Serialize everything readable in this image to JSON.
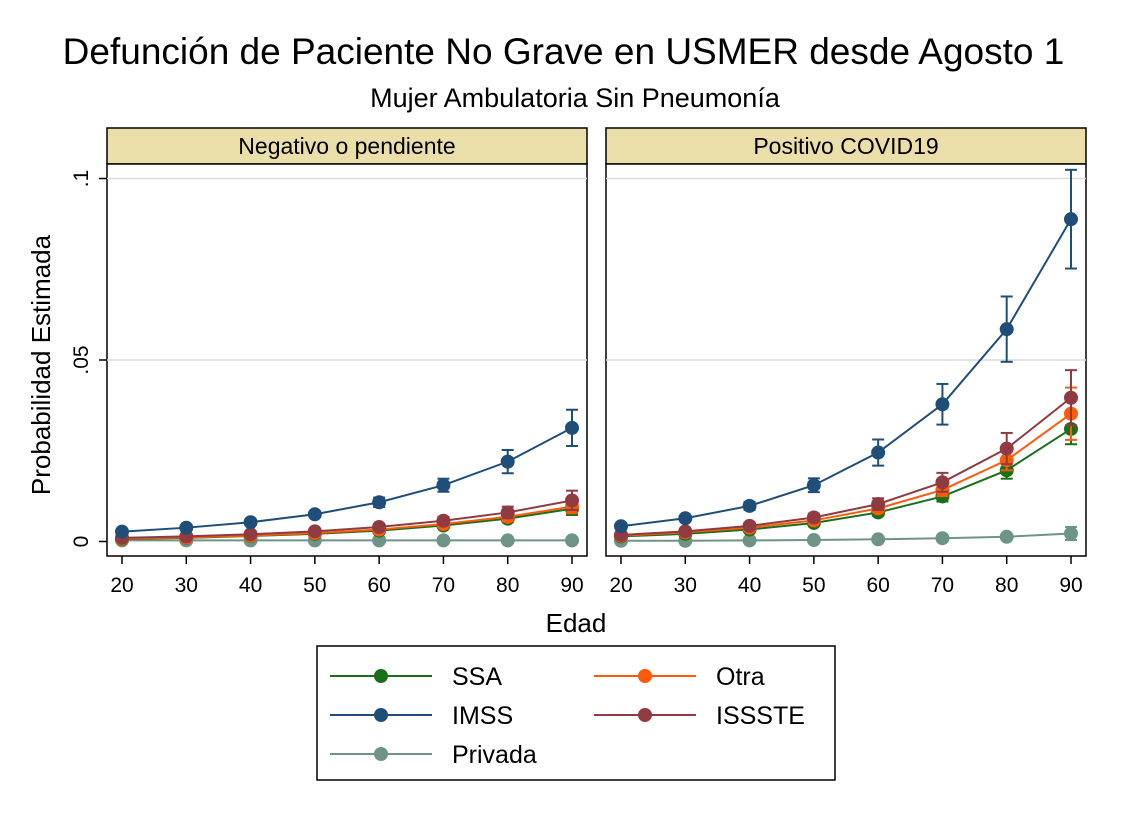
{
  "title": "Defunción de Paciente No Grave en USMER desde Agosto 1",
  "subtitle": "Mujer Ambulatoria Sin Pneumonía",
  "chart_data": {
    "type": "line",
    "xlabel": "Edad",
    "ylabel": "Probabilidad Estimada",
    "x": [
      20,
      30,
      40,
      50,
      60,
      70,
      80,
      90
    ],
    "x_ticks": [
      "20",
      "30",
      "40",
      "50",
      "60",
      "70",
      "80",
      "90"
    ],
    "ylim": [
      -0.004,
      0.104
    ],
    "y_ticks": [
      {
        "value": 0,
        "label": "0"
      },
      {
        "value": 0.05,
        "label": ".05"
      },
      {
        "value": 0.1,
        "label": ".1"
      }
    ],
    "grid": true,
    "legend_position": "bottom",
    "series_styles": [
      {
        "name": "SSA",
        "color": "#1a6f1a"
      },
      {
        "name": "IMSS",
        "color": "#1f4e79"
      },
      {
        "name": "Privada",
        "color": "#6e9488"
      },
      {
        "name": "Otra",
        "color": "#ff5a0a"
      },
      {
        "name": "ISSSTE",
        "color": "#903a42"
      }
    ],
    "panels": [
      {
        "title": "Negativo o pendiente",
        "series": [
          {
            "name": "Privada",
            "values": [
              0.0003,
              0.0003,
              0.0003,
              0.0003,
              0.0003,
              0.0003,
              0.0003,
              0.0003
            ],
            "lower": [
              0.0003,
              0.0003,
              0.0003,
              0.0003,
              0.0003,
              0.0003,
              0.0003,
              0.0003
            ],
            "upper": [
              0.0003,
              0.0003,
              0.0003,
              0.0003,
              0.0003,
              0.0003,
              0.0003,
              0.0003
            ]
          },
          {
            "name": "SSA",
            "values": [
              0.0007,
              0.001,
              0.0015,
              0.0021,
              0.003,
              0.0044,
              0.0063,
              0.009
            ],
            "lower": [
              0.0005,
              0.0008,
              0.0012,
              0.0018,
              0.0025,
              0.0037,
              0.0053,
              0.0073
            ],
            "upper": [
              0.0009,
              0.0012,
              0.0018,
              0.0024,
              0.0035,
              0.0051,
              0.0073,
              0.0107
            ]
          },
          {
            "name": "Otra",
            "values": [
              0.0008,
              0.0011,
              0.0016,
              0.0023,
              0.0033,
              0.0048,
              0.0068,
              0.0096
            ],
            "lower": [
              0.0006,
              0.0009,
              0.0013,
              0.0019,
              0.0027,
              0.004,
              0.0056,
              0.0078
            ],
            "upper": [
              0.001,
              0.0013,
              0.0019,
              0.0027,
              0.0039,
              0.0056,
              0.008,
              0.0114
            ]
          },
          {
            "name": "ISSSTE",
            "values": [
              0.001,
              0.0014,
              0.002,
              0.0028,
              0.004,
              0.0057,
              0.008,
              0.0113
            ],
            "lower": [
              0.0008,
              0.0011,
              0.0016,
              0.0022,
              0.0032,
              0.0046,
              0.0064,
              0.0087
            ],
            "upper": [
              0.0012,
              0.0017,
              0.0024,
              0.0034,
              0.0048,
              0.0068,
              0.0096,
              0.014
            ]
          },
          {
            "name": "IMSS",
            "values": [
              0.0027,
              0.0038,
              0.0053,
              0.0075,
              0.0108,
              0.0155,
              0.022,
              0.0313
            ],
            "lower": [
              0.0023,
              0.0033,
              0.0047,
              0.0068,
              0.0095,
              0.0137,
              0.0188,
              0.0263
            ],
            "upper": [
              0.0031,
              0.0043,
              0.0059,
              0.0082,
              0.0121,
              0.0173,
              0.0252,
              0.0363
            ]
          }
        ]
      },
      {
        "title": "Positivo COVID19",
        "series": [
          {
            "name": "Privada",
            "values": [
              0.0002,
              0.0002,
              0.0003,
              0.0004,
              0.0006,
              0.0009,
              0.0013,
              0.0022
            ],
            "lower": [
              0.0001,
              0.0001,
              0.0002,
              0.0003,
              0.0004,
              0.0006,
              0.0007,
              0.0004
            ],
            "upper": [
              0.0003,
              0.0003,
              0.0004,
              0.0005,
              0.0008,
              0.0012,
              0.0019,
              0.004
            ]
          },
          {
            "name": "SSA",
            "values": [
              0.0014,
              0.0021,
              0.0033,
              0.0051,
              0.008,
              0.0124,
              0.0196,
              0.031
            ],
            "lower": [
              0.0012,
              0.0018,
              0.0029,
              0.0045,
              0.0071,
              0.011,
              0.0173,
              0.0268
            ],
            "upper": [
              0.0016,
              0.0024,
              0.0037,
              0.0057,
              0.0089,
              0.0138,
              0.0219,
              0.0352
            ]
          },
          {
            "name": "Otra",
            "values": [
              0.0016,
              0.0025,
              0.0038,
              0.0058,
              0.0091,
              0.0142,
              0.0224,
              0.0352
            ],
            "lower": [
              0.0013,
              0.0021,
              0.0033,
              0.0051,
              0.008,
              0.0125,
              0.0196,
              0.028
            ],
            "upper": [
              0.0019,
              0.0029,
              0.0043,
              0.0065,
              0.0102,
              0.0159,
              0.0252,
              0.0424
            ]
          },
          {
            "name": "ISSSTE",
            "values": [
              0.0018,
              0.0028,
              0.0043,
              0.0066,
              0.0103,
              0.0163,
              0.0256,
              0.0396
            ],
            "lower": [
              0.0014,
              0.0022,
              0.0035,
              0.0055,
              0.0087,
              0.0137,
              0.0213,
              0.032
            ],
            "upper": [
              0.0022,
              0.0034,
              0.0051,
              0.0077,
              0.0119,
              0.0189,
              0.0299,
              0.0472
            ]
          },
          {
            "name": "IMSS",
            "values": [
              0.0042,
              0.0064,
              0.0098,
              0.0155,
              0.0245,
              0.0378,
              0.0585,
              0.0888
            ],
            "lower": [
              0.0037,
              0.0058,
              0.0087,
              0.0136,
              0.0209,
              0.0322,
              0.0495,
              0.0752
            ],
            "upper": [
              0.0047,
              0.007,
              0.0109,
              0.0174,
              0.0281,
              0.0434,
              0.0675,
              0.1024
            ]
          }
        ]
      }
    ],
    "legend": [
      {
        "name": "SSA",
        "color": "#1a6f1a"
      },
      {
        "name": "Otra",
        "color": "#ff5a0a"
      },
      {
        "name": "IMSS",
        "color": "#1f4e79"
      },
      {
        "name": "ISSSTE",
        "color": "#903a42"
      },
      {
        "name": "Privada",
        "color": "#6e9488"
      }
    ],
    "panel_header_color": "#eadfa8"
  }
}
